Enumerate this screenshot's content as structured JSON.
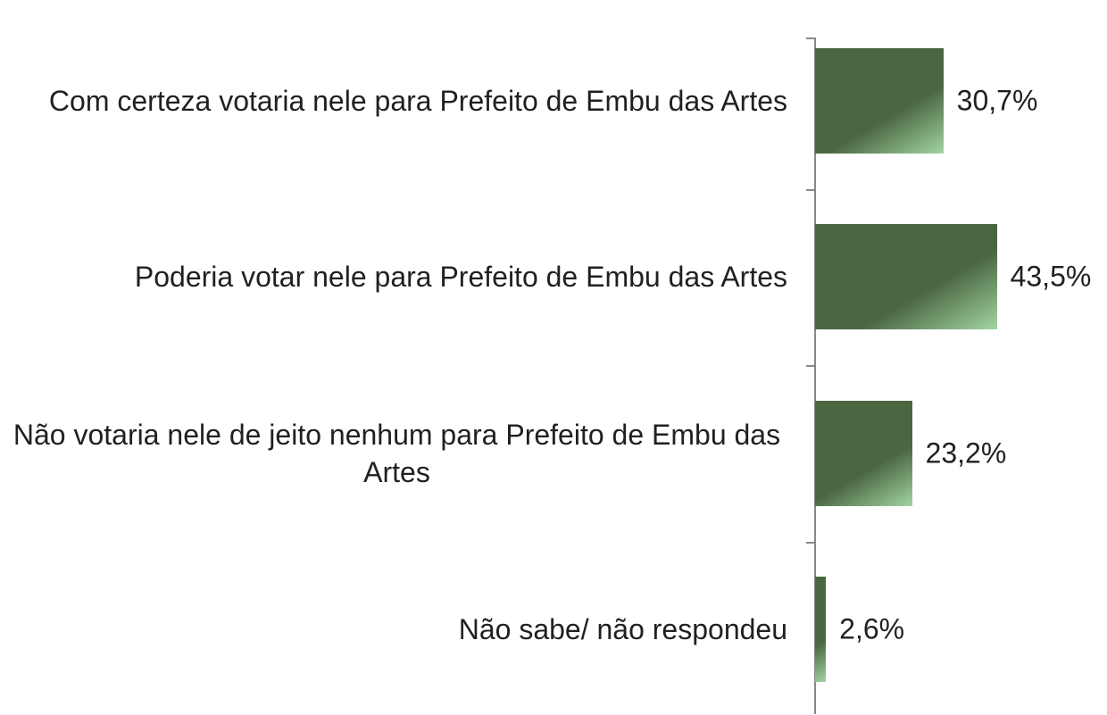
{
  "chart_data": {
    "type": "bar",
    "orientation": "horizontal",
    "categories": [
      "Com certeza votaria nele para Prefeito de Embu das Artes",
      "Poderia votar nele para Prefeito de Embu das Artes",
      "Não votaria nele de jeito nenhum para Prefeito de Embu das Artes",
      "Não sabe/ não respondeu"
    ],
    "values": [
      30.7,
      43.5,
      23.2,
      2.6
    ],
    "value_labels": [
      "30,7%",
      "43,5%",
      "23,2%",
      "2,6%"
    ],
    "color": "#4a6741"
  }
}
